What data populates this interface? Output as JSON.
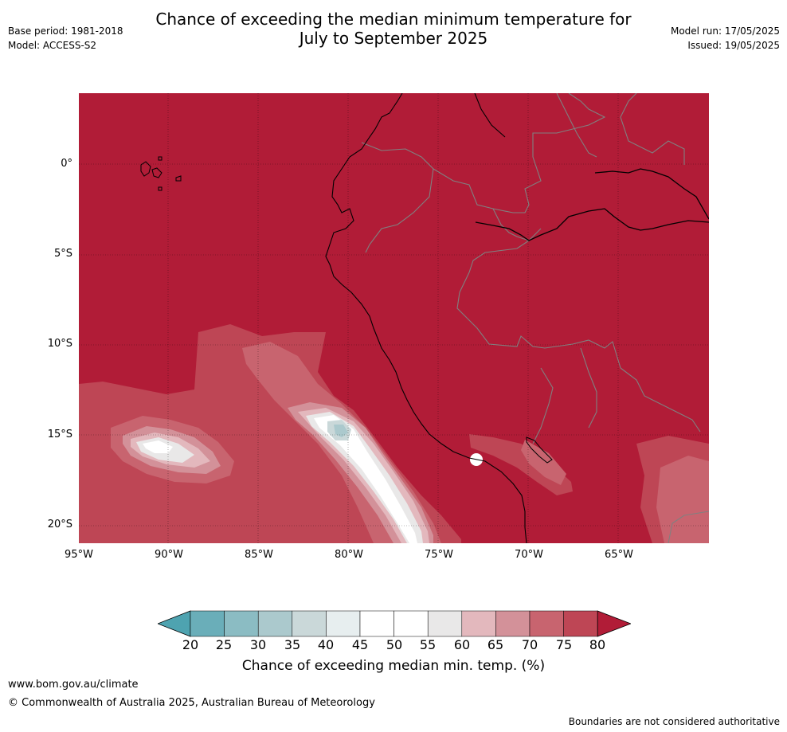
{
  "title_line1": "Chance of exceeding the median minimum temperature for",
  "title_line2": "July to September 2025",
  "base_period": "Base period: 1981-2018",
  "model": "Model: ACCESS-S2",
  "model_run": "Model run: 17/05/2025",
  "issued": "Issued: 19/05/2025",
  "lat_labels": [
    "0°",
    "5°S",
    "10°S",
    "15°S",
    "20°S"
  ],
  "lon_labels": [
    "95°W",
    "90°W",
    "85°W",
    "80°W",
    "75°W",
    "70°W",
    "65°W"
  ],
  "legend": {
    "ticks": [
      "20",
      "25",
      "30",
      "35",
      "40",
      "45",
      "50",
      "55",
      "60",
      "65",
      "70",
      "75",
      "80"
    ],
    "colors": [
      "#4ea3b0",
      "#6aaeb9",
      "#8bbcc3",
      "#abc9cd",
      "#cad8d9",
      "#e7eeef",
      "#ffffff",
      "#ffffff",
      "#e9e8e8",
      "#e3b8bd",
      "#d39199",
      "#c8646f",
      "#be4655",
      "#b11c37"
    ],
    "label": "Chance of exceeding median min. temp. (%)"
  },
  "map_colors": {
    "c80": "#b11c37",
    "c75": "#be4655",
    "c70": "#c8646f",
    "c65": "#d39199",
    "c60": "#e3b8bd",
    "c55": "#e9e8e8",
    "c50": "#ffffff",
    "c40": "#cad8d9",
    "c35": "#abc9cd"
  },
  "footer_url": "www.bom.gov.au/climate",
  "footer_copyright": "© Commonwealth of Australia 2025, Australian Bureau of Meteorology",
  "footer_note": "Boundaries are not considered authoritative"
}
